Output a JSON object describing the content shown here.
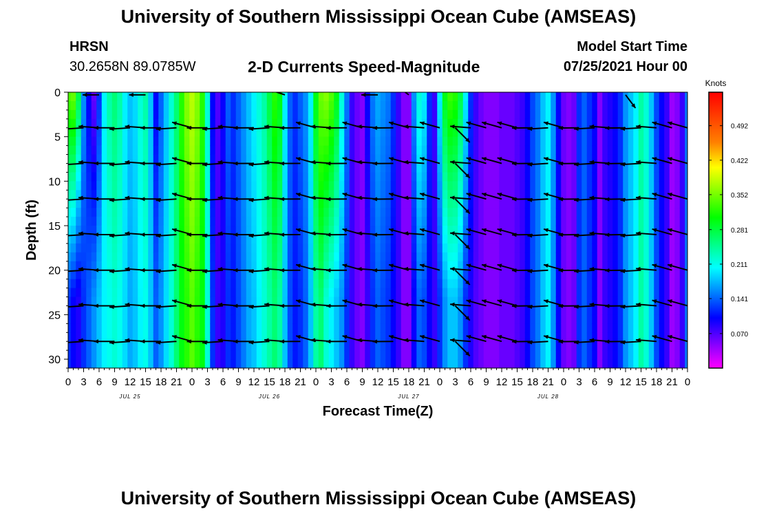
{
  "header": {
    "title": "University of Southern Mississippi Ocean Cube (AMSEAS)",
    "station": "HRSN",
    "coords": "30.2658N  89.0785W",
    "plot_title": "2-D Currents Speed-Magnitude",
    "start_label": "Model Start Time",
    "start_value": "07/25/2021 Hour 00"
  },
  "footer": {
    "title": "University of Southern Mississippi Ocean Cube (AMSEAS)"
  },
  "colors": {
    "ramp": [
      "#ff00ff",
      "#7f00ff",
      "#0000ff",
      "#0080ff",
      "#00ffff",
      "#00ff80",
      "#00ff00",
      "#80ff00",
      "#ffff00",
      "#ff8000",
      "#ff4000",
      "#ff0000"
    ],
    "arrow": "#000000"
  },
  "chart_data": {
    "type": "heatmap",
    "title": "2-D Currents Speed-Magnitude",
    "xlabel": "Forecast Time(Z)",
    "ylabel": "Depth (ft)",
    "x_tick_hours": [
      0,
      3,
      6,
      9,
      12,
      15,
      18,
      21,
      24,
      27,
      30,
      33,
      36,
      39,
      42,
      45,
      48,
      51,
      54,
      57,
      60,
      63,
      66,
      69,
      72,
      75,
      78,
      81,
      84,
      87,
      90,
      93,
      96,
      99,
      102,
      105,
      108,
      111,
      114,
      117,
      120
    ],
    "x_tick_labels": [
      "0",
      "3",
      "6",
      "9",
      "12",
      "15",
      "18",
      "21",
      "0",
      "3",
      "6",
      "9",
      "12",
      "15",
      "18",
      "21",
      "0",
      "3",
      "6",
      "9",
      "12",
      "15",
      "18",
      "21",
      "0",
      "3",
      "6",
      "9",
      "12",
      "15",
      "18",
      "21",
      "0",
      "3",
      "6",
      "9",
      "12",
      "15",
      "18",
      "21",
      "0"
    ],
    "xlim": [
      0,
      120
    ],
    "day_labels": [
      {
        "hour": 12,
        "label": "JUL 25"
      },
      {
        "hour": 39,
        "label": "JUL 26"
      },
      {
        "hour": 66,
        "label": "JUL 27"
      },
      {
        "hour": 93,
        "label": "JUL 28"
      }
    ],
    "y_ticks": [
      0,
      5,
      10,
      15,
      20,
      25,
      30
    ],
    "ylim": [
      0,
      31
    ],
    "colorbar": {
      "unit": "Knots",
      "range": [
        0,
        0.56
      ],
      "tick_values": [
        0.07,
        0.141,
        0.211,
        0.281,
        0.352,
        0.422,
        0.492
      ],
      "tick_labels": [
        "0.070",
        "0.141",
        "0.211",
        "0.281",
        "0.352",
        "0.422",
        "0.492"
      ]
    },
    "speed_profile_knots": {
      "hours": [
        0,
        1,
        2,
        3,
        4,
        5,
        6,
        7,
        8,
        9,
        10,
        11,
        12,
        13,
        14,
        15,
        16,
        17,
        18,
        19,
        20,
        21,
        22,
        23,
        24,
        25,
        26,
        27,
        28,
        29,
        30,
        31,
        32,
        33,
        34,
        35,
        36,
        37,
        38,
        39,
        40,
        41,
        42,
        43,
        44,
        45,
        46,
        47,
        48,
        49,
        50,
        51,
        52,
        53,
        54,
        55,
        56,
        57,
        58,
        59,
        60,
        61,
        62,
        63,
        64,
        65,
        66,
        67,
        68,
        69,
        70,
        71,
        72,
        73,
        74,
        75,
        76,
        77,
        78,
        79,
        80,
        81,
        82,
        83,
        84,
        85,
        86,
        87,
        88,
        89,
        90,
        91,
        92,
        93,
        94,
        95,
        96,
        97,
        98,
        99,
        100,
        101,
        102,
        103,
        104,
        105,
        106,
        107,
        108,
        109,
        110,
        111,
        112,
        113,
        114,
        115,
        116,
        117,
        118,
        119,
        120
      ],
      "surface": [
        0.34,
        0.35,
        0.28,
        0.16,
        0.1,
        0.06,
        0.12,
        0.2,
        0.24,
        0.26,
        0.24,
        0.2,
        0.18,
        0.19,
        0.22,
        0.24,
        0.18,
        0.1,
        0.14,
        0.18,
        0.22,
        0.26,
        0.32,
        0.36,
        0.38,
        0.36,
        0.32,
        0.22,
        0.1,
        0.07,
        0.1,
        0.14,
        0.12,
        0.14,
        0.16,
        0.18,
        0.2,
        0.22,
        0.24,
        0.28,
        0.32,
        0.3,
        0.2,
        0.14,
        0.12,
        0.14,
        0.16,
        0.2,
        0.3,
        0.35,
        0.36,
        0.34,
        0.3,
        0.22,
        0.15,
        0.08,
        0.06,
        0.05,
        0.1,
        0.15,
        0.17,
        0.16,
        0.15,
        0.12,
        0.08,
        0.05,
        0.05,
        0.16,
        0.22,
        0.2,
        0.12,
        0.08,
        0.2,
        0.3,
        0.33,
        0.32,
        0.28,
        0.2,
        0.12,
        0.08,
        0.06,
        0.05,
        0.05,
        0.05,
        0.06,
        0.06,
        0.06,
        0.07,
        0.08,
        0.1,
        0.13,
        0.15,
        0.18,
        0.2,
        0.16,
        0.1,
        0.06,
        0.05,
        0.06,
        0.12,
        0.14,
        0.12,
        0.1,
        0.05,
        0.08,
        0.09,
        0.1,
        0.12,
        0.16,
        0.18,
        0.2,
        0.24,
        0.22,
        0.18,
        0.13,
        0.1,
        0.08,
        0.04,
        0.05,
        0.08,
        0.15
      ],
      "bottom": [
        0.12,
        0.1,
        0.09,
        0.12,
        0.14,
        0.16,
        0.18,
        0.2,
        0.21,
        0.22,
        0.21,
        0.19,
        0.17,
        0.18,
        0.2,
        0.21,
        0.18,
        0.14,
        0.16,
        0.19,
        0.22,
        0.26,
        0.3,
        0.32,
        0.34,
        0.32,
        0.3,
        0.22,
        0.12,
        0.08,
        0.09,
        0.12,
        0.11,
        0.13,
        0.15,
        0.17,
        0.18,
        0.2,
        0.22,
        0.24,
        0.26,
        0.24,
        0.18,
        0.13,
        0.11,
        0.12,
        0.14,
        0.18,
        0.24,
        0.26,
        0.22,
        0.2,
        0.18,
        0.16,
        0.12,
        0.08,
        0.06,
        0.05,
        0.08,
        0.12,
        0.14,
        0.13,
        0.12,
        0.1,
        0.08,
        0.05,
        0.05,
        0.1,
        0.14,
        0.13,
        0.1,
        0.08,
        0.12,
        0.16,
        0.18,
        0.18,
        0.16,
        0.12,
        0.09,
        0.07,
        0.06,
        0.05,
        0.05,
        0.05,
        0.06,
        0.06,
        0.06,
        0.07,
        0.08,
        0.1,
        0.13,
        0.15,
        0.18,
        0.2,
        0.16,
        0.1,
        0.06,
        0.05,
        0.06,
        0.12,
        0.14,
        0.12,
        0.1,
        0.05,
        0.08,
        0.09,
        0.1,
        0.12,
        0.16,
        0.18,
        0.2,
        0.24,
        0.22,
        0.18,
        0.13,
        0.1,
        0.08,
        0.04,
        0.05,
        0.08,
        0.15
      ]
    },
    "vector_depths_ft": [
      4,
      8,
      12,
      16,
      20,
      24,
      28
    ],
    "vector_hours": [
      3,
      6,
      9,
      12,
      15,
      18,
      21,
      24,
      27,
      30,
      33,
      36,
      39,
      42,
      45,
      48,
      51,
      54,
      57,
      60,
      63,
      66,
      69,
      72,
      75,
      78,
      81,
      84,
      87,
      90,
      93,
      96,
      99,
      102,
      105,
      108,
      111,
      114,
      117,
      120
    ],
    "surface_vectors": [
      {
        "hour": 6,
        "depth": 0,
        "u": -1,
        "v": 0
      },
      {
        "hour": 15,
        "depth": 0,
        "u": -1,
        "v": 0
      },
      {
        "hour": 42,
        "depth": 0,
        "u": -0.9,
        "v": -0.3
      },
      {
        "hour": 60,
        "depth": 0,
        "u": -1,
        "v": 0
      },
      {
        "hour": 66,
        "depth": 0,
        "u": -0.8,
        "v": -0.6
      },
      {
        "hour": 108,
        "depth": 0,
        "u": 0.6,
        "v": 0.8
      }
    ]
  }
}
